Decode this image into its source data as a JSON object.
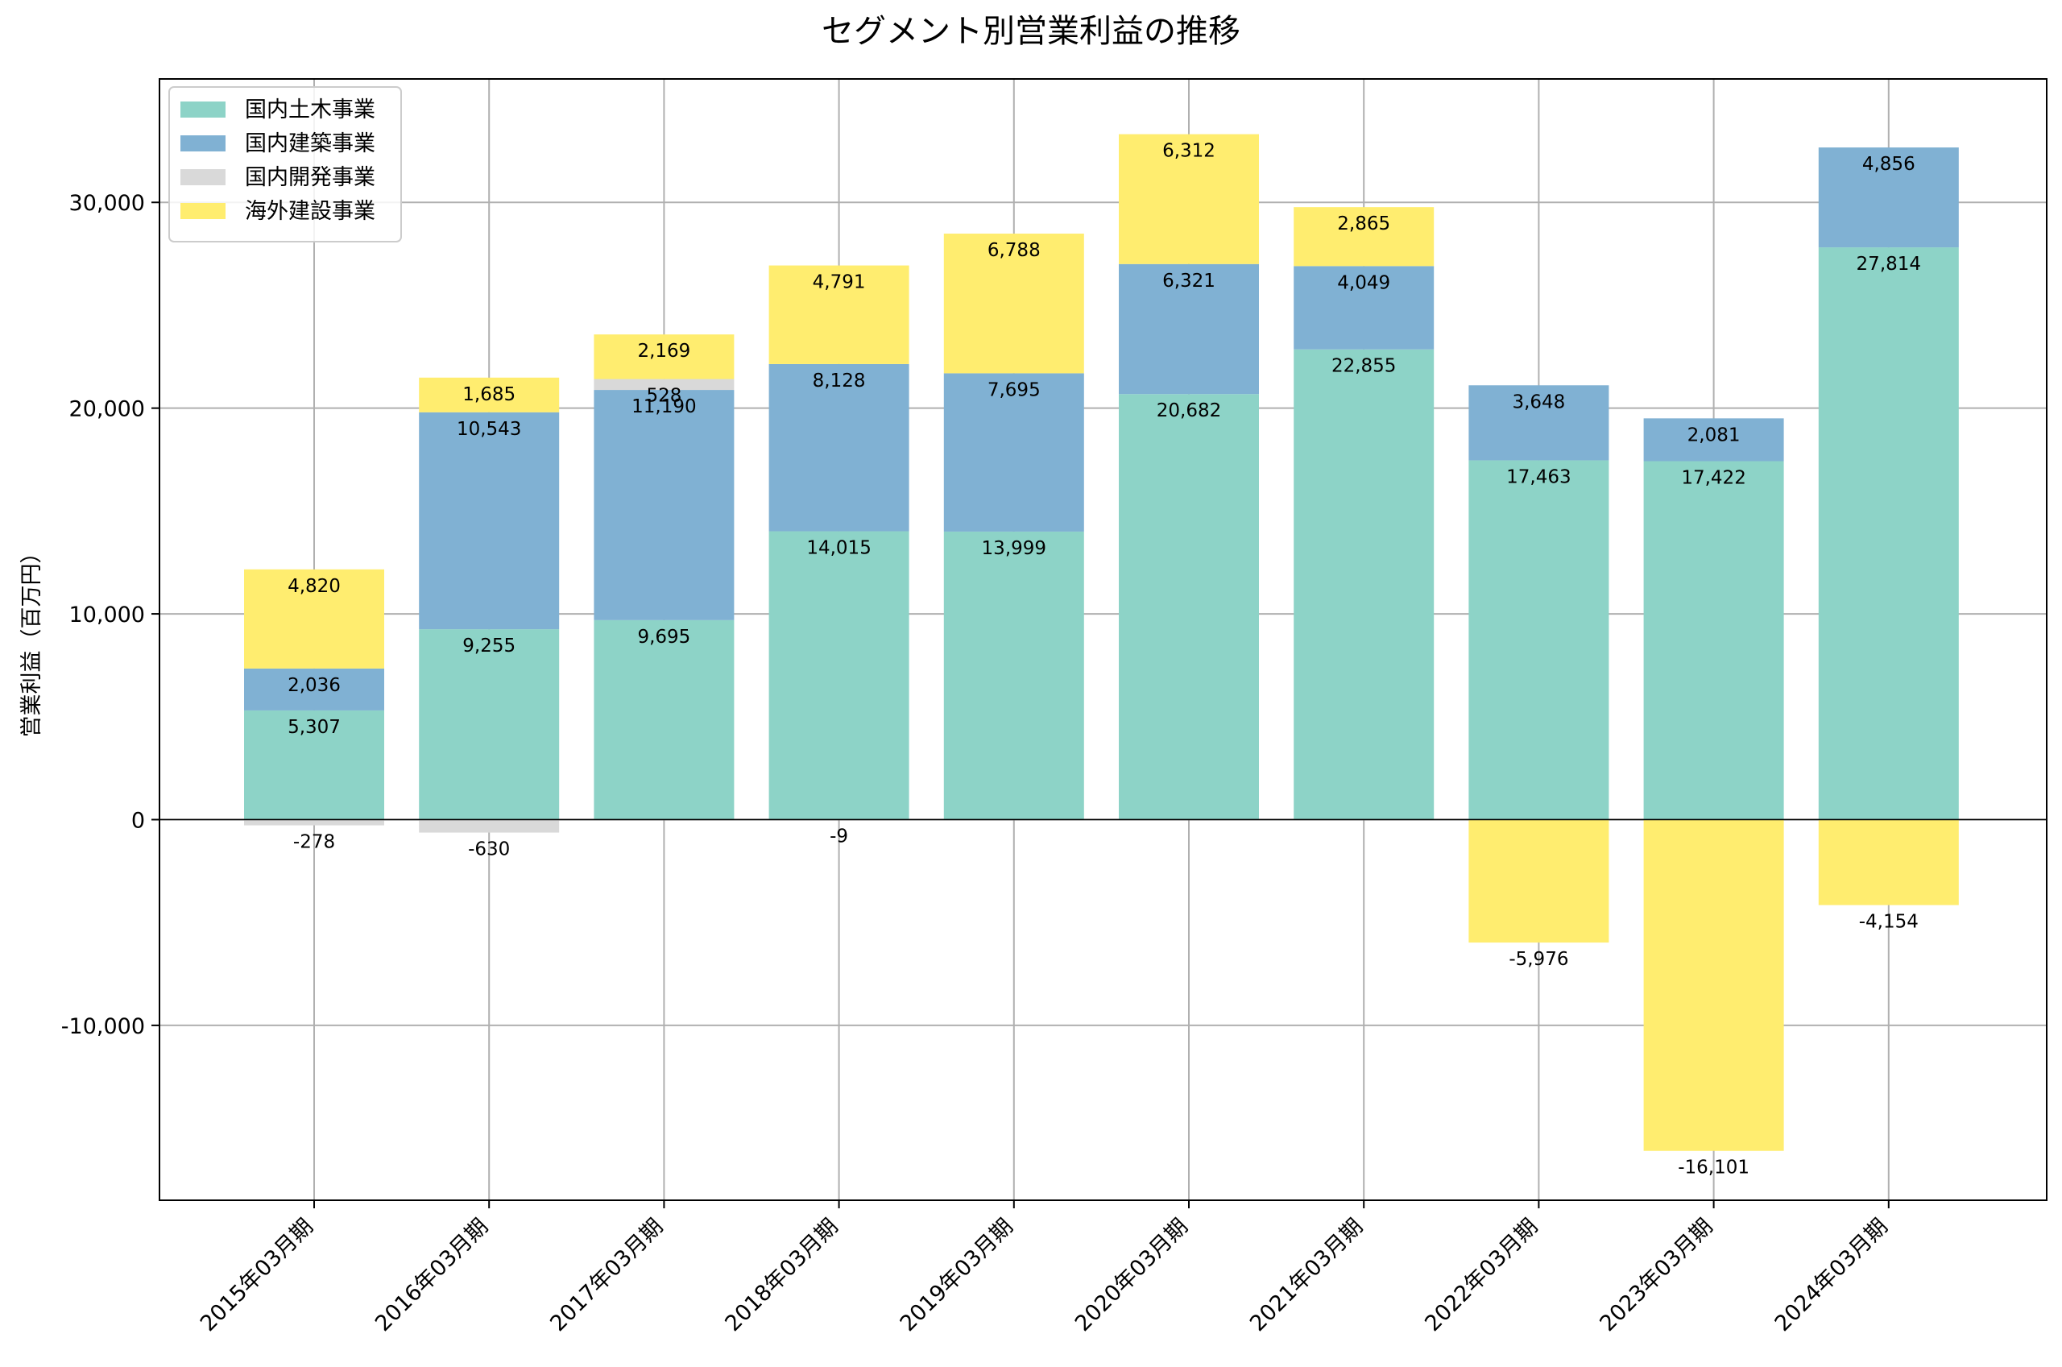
{
  "chart_data": {
    "type": "bar",
    "stacked": true,
    "title": "セグメント別営業利益の推移",
    "xlabel": "",
    "ylabel": "営業利益（百万円）",
    "ylim": [
      -18500,
      36000
    ],
    "yticks": [
      -10000,
      0,
      10000,
      20000,
      30000
    ],
    "ytick_labels": [
      "-10,000",
      "0",
      "10,000",
      "20,000",
      "30,000"
    ],
    "grid": true,
    "legend_position": "top-left",
    "categories": [
      "2015年03月期",
      "2016年03月期",
      "2017年03月期",
      "2018年03月期",
      "2019年03月期",
      "2020年03月期",
      "2021年03月期",
      "2022年03月期",
      "2023年03月期",
      "2024年03月期"
    ],
    "series": [
      {
        "name": "国内土木事業",
        "color": "#8dd3c7",
        "values": [
          5307,
          9255,
          9695,
          14015,
          13999,
          20682,
          22855,
          17463,
          17422,
          27814
        ]
      },
      {
        "name": "国内建築事業",
        "color": "#80b1d3",
        "values": [
          2036,
          10543,
          11190,
          8128,
          7695,
          6321,
          4049,
          3648,
          2081,
          4856
        ]
      },
      {
        "name": "国内開発事業",
        "color": "#d9d9d9",
        "values": [
          -278,
          -630,
          528,
          -9,
          null,
          null,
          null,
          null,
          null,
          null
        ]
      },
      {
        "name": "海外建設事業",
        "color": "#ffed6f",
        "values": [
          4820,
          1685,
          2169,
          4791,
          6788,
          6312,
          2865,
          -5976,
          -16101,
          -4154
        ]
      }
    ]
  }
}
